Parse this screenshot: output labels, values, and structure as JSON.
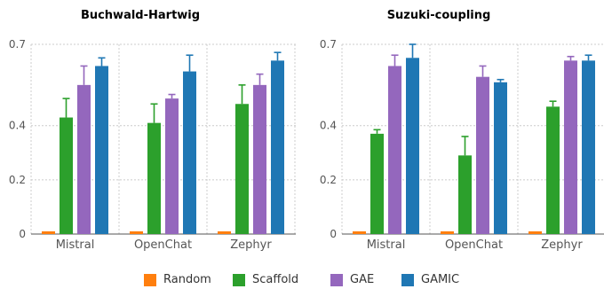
{
  "chart_data": [
    {
      "type": "bar",
      "title": "Buchwald-Hartwig",
      "categories": [
        "Mistral",
        "OpenChat",
        "Zephyr"
      ],
      "yticks": [
        "0",
        "0.2",
        "0.4",
        "0.7"
      ],
      "ylim": [
        0,
        0.7
      ],
      "series": [
        {
          "name": "Random",
          "values": [
            0.01,
            0.01,
            0.01
          ],
          "errors": [
            0.0,
            0.0,
            0.0
          ]
        },
        {
          "name": "Scaffold",
          "values": [
            0.43,
            0.41,
            0.48
          ],
          "errors": [
            0.07,
            0.07,
            0.07
          ]
        },
        {
          "name": "GAE",
          "values": [
            0.55,
            0.5,
            0.55
          ],
          "errors": [
            0.07,
            0.015,
            0.04
          ]
        },
        {
          "name": "GAMIC",
          "values": [
            0.62,
            0.6,
            0.64
          ],
          "errors": [
            0.03,
            0.06,
            0.03
          ]
        }
      ]
    },
    {
      "type": "bar",
      "title": "Suzuki-coupling",
      "categories": [
        "Mistral",
        "OpenChat",
        "Zephyr"
      ],
      "yticks": [
        "0",
        "0.2",
        "0.4",
        "0.7"
      ],
      "ylim": [
        0,
        0.7
      ],
      "series": [
        {
          "name": "Random",
          "values": [
            0.01,
            0.01,
            0.01
          ],
          "errors": [
            0.0,
            0.0,
            0.0
          ]
        },
        {
          "name": "Scaffold",
          "values": [
            0.37,
            0.29,
            0.47
          ],
          "errors": [
            0.015,
            0.07,
            0.02
          ]
        },
        {
          "name": "GAE",
          "values": [
            0.62,
            0.58,
            0.64
          ],
          "errors": [
            0.04,
            0.04,
            0.015
          ]
        },
        {
          "name": "GAMIC",
          "values": [
            0.65,
            0.56,
            0.64
          ],
          "errors": [
            0.05,
            0.01,
            0.02
          ]
        }
      ]
    }
  ],
  "legend": [
    {
      "label": "Random",
      "color": "#ff7f0e"
    },
    {
      "label": "Scaffold",
      "color": "#2ca02c"
    },
    {
      "label": "GAE",
      "color": "#9467bd"
    },
    {
      "label": "GAMIC",
      "color": "#1f77b4"
    }
  ],
  "colors": {
    "Random": "#ff7f0e",
    "Scaffold": "#2ca02c",
    "GAE": "#9467bd",
    "GAMIC": "#1f77b4",
    "axis": "#555555",
    "grid": "#cccccc"
  }
}
